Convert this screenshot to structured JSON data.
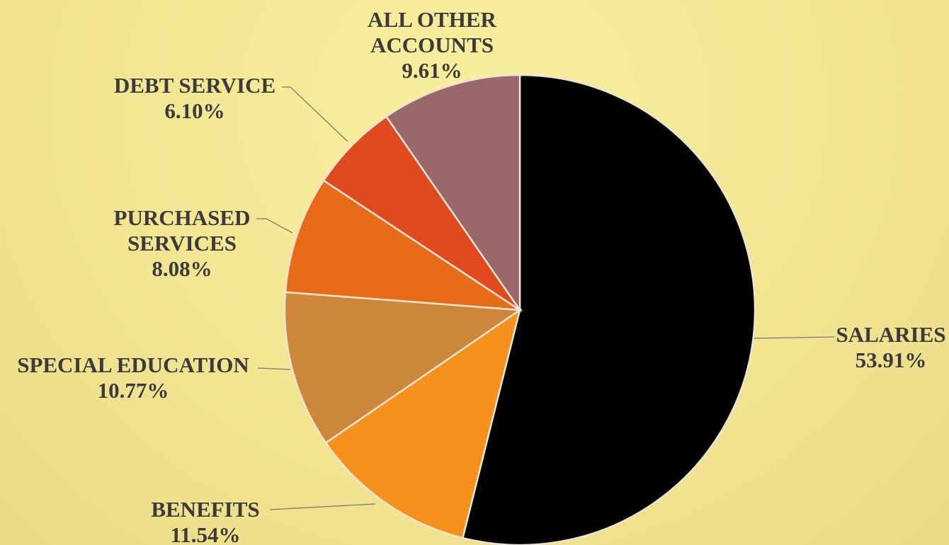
{
  "chart_data": {
    "type": "pie",
    "title": "",
    "slices": [
      {
        "name": "SALARIES",
        "label_lines": [
          "SALARIES"
        ],
        "value": 53.91,
        "pct_label": "53.91%",
        "color": "#000000"
      },
      {
        "name": "BENEFITS",
        "label_lines": [
          "BENEFITS"
        ],
        "value": 11.54,
        "pct_label": "11.54%",
        "color": "#f5921e"
      },
      {
        "name": "SPECIAL EDUCATION",
        "label_lines": [
          "SPECIAL EDUCATION"
        ],
        "value": 10.77,
        "pct_label": "10.77%",
        "color": "#cd873a"
      },
      {
        "name": "PURCHASED SERVICES",
        "label_lines": [
          "PURCHASED",
          "SERVICES"
        ],
        "value": 8.08,
        "pct_label": "8.08%",
        "color": "#e86c17"
      },
      {
        "name": "DEBT SERVICE",
        "label_lines": [
          "DEBT SERVICE"
        ],
        "value": 6.1,
        "pct_label": "6.10%",
        "color": "#e04a1f"
      },
      {
        "name": "ALL OTHER ACCOUNTS",
        "label_lines": [
          "ALL OTHER",
          "ACCOUNTS"
        ],
        "value": 9.61,
        "pct_label": "9.61%",
        "color": "#9a686a"
      }
    ],
    "start_position": "12 o'clock",
    "direction": "clockwise",
    "legend": "none",
    "label_style": "outside with leader lines"
  }
}
